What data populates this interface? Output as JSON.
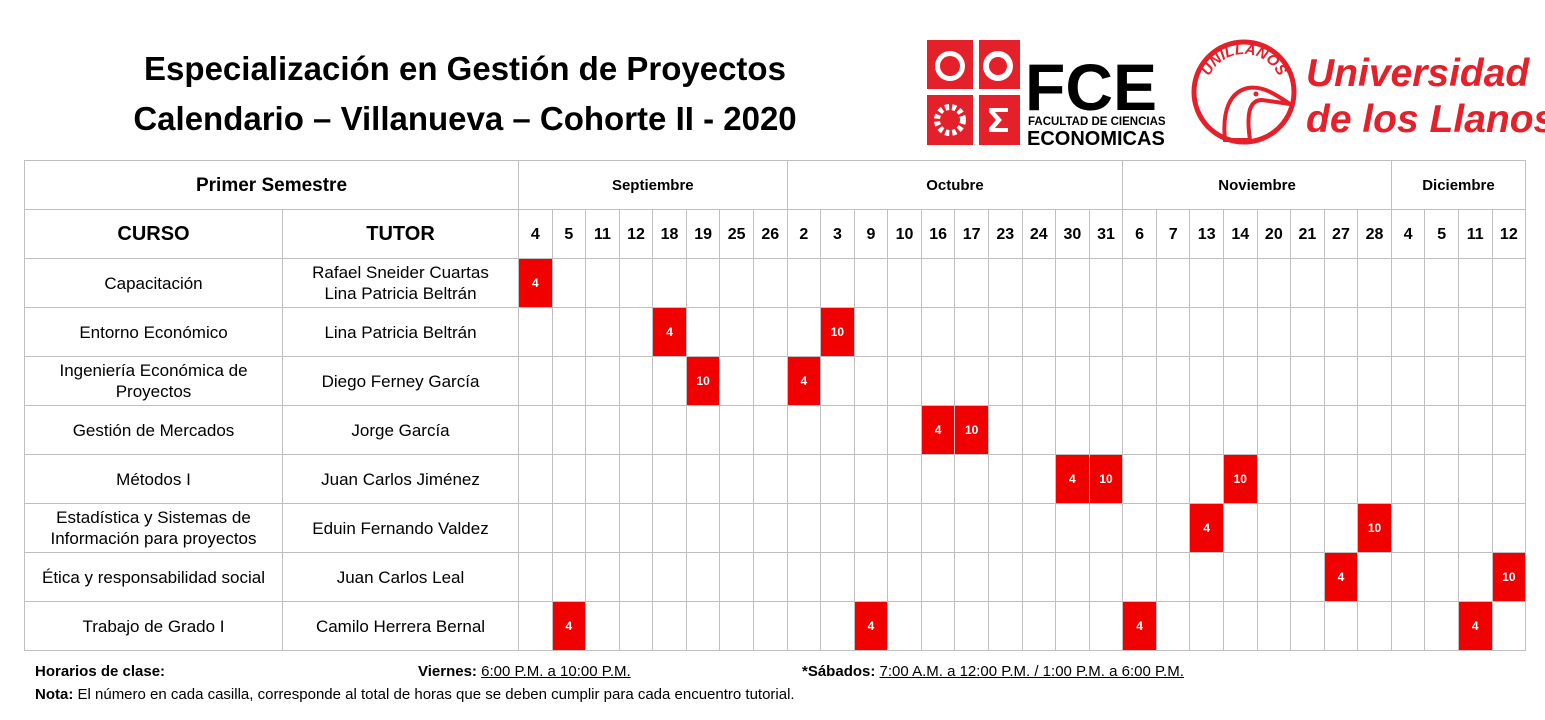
{
  "header": {
    "title_lines": [
      "Especialización en Gestión de Proyectos",
      "Calendario – Villanueva – Cohorte II - 2020"
    ]
  },
  "logos": {
    "fce": {
      "acronym": "FCE",
      "line1": "FACULTAD DE CIENCIAS",
      "line2": "ECONOMICAS"
    },
    "unillanos": {
      "badge": "UNILLANOS",
      "line1": "Universidad",
      "line2": "de los Llanos"
    }
  },
  "table": {
    "semester": "Primer Semestre",
    "course_header": "CURSO",
    "tutor_header": "TUTOR",
    "months": [
      {
        "name": "Septiembre",
        "days": [
          4,
          5,
          11,
          12,
          18,
          19,
          25,
          26
        ]
      },
      {
        "name": "Octubre",
        "days": [
          2,
          3,
          9,
          10,
          16,
          17,
          23,
          24,
          30,
          31
        ]
      },
      {
        "name": "Noviembre",
        "days": [
          6,
          7,
          13,
          14,
          20,
          21,
          27,
          28
        ]
      },
      {
        "name": "Diciembre",
        "days": [
          4,
          5,
          11,
          12
        ]
      }
    ],
    "rows": [
      {
        "course": "Capacitación",
        "tutor": [
          "Rafael Sneider Cuartas",
          "Lina Patricia Beltrán"
        ],
        "cells": [
          4,
          null,
          null,
          null,
          null,
          null,
          null,
          null,
          null,
          null,
          null,
          null,
          null,
          null,
          null,
          null,
          null,
          null,
          null,
          null,
          null,
          null,
          null,
          null,
          null,
          null,
          null,
          null,
          null,
          null
        ]
      },
      {
        "course": "Entorno Económico",
        "tutor": [
          "Lina Patricia Beltrán"
        ],
        "cells": [
          null,
          null,
          null,
          null,
          4,
          null,
          null,
          null,
          null,
          10,
          null,
          null,
          null,
          null,
          null,
          null,
          null,
          null,
          null,
          null,
          null,
          null,
          null,
          null,
          null,
          null,
          null,
          null,
          null,
          null
        ]
      },
      {
        "course": "Ingeniería Económica de Proyectos",
        "tutor": [
          "Diego Ferney García"
        ],
        "cells": [
          null,
          null,
          null,
          null,
          null,
          10,
          null,
          null,
          4,
          null,
          null,
          null,
          null,
          null,
          null,
          null,
          null,
          null,
          null,
          null,
          null,
          null,
          null,
          null,
          null,
          null,
          null,
          null,
          null,
          null
        ]
      },
      {
        "course": "Gestión de Mercados",
        "tutor": [
          "Jorge García"
        ],
        "cells": [
          null,
          null,
          null,
          null,
          null,
          null,
          null,
          null,
          null,
          null,
          null,
          null,
          4,
          10,
          null,
          null,
          null,
          null,
          null,
          null,
          null,
          null,
          null,
          null,
          null,
          null,
          null,
          null,
          null,
          null
        ]
      },
      {
        "course": "Métodos I",
        "tutor": [
          "Juan Carlos Jiménez"
        ],
        "cells": [
          null,
          null,
          null,
          null,
          null,
          null,
          null,
          null,
          null,
          null,
          null,
          null,
          null,
          null,
          null,
          null,
          4,
          10,
          null,
          null,
          null,
          10,
          null,
          null,
          null,
          null,
          null,
          null,
          null,
          null
        ]
      },
      {
        "course": "Estadística y Sistemas de Información para proyectos",
        "tutor": [
          "Eduin Fernando Valdez"
        ],
        "cells": [
          null,
          null,
          null,
          null,
          null,
          null,
          null,
          null,
          null,
          null,
          null,
          null,
          null,
          null,
          null,
          null,
          null,
          null,
          null,
          null,
          4,
          null,
          null,
          null,
          null,
          10,
          null,
          null,
          null,
          null
        ]
      },
      {
        "course": "Ética y responsabilidad social",
        "tutor": [
          "Juan Carlos Leal"
        ],
        "cells": [
          null,
          null,
          null,
          null,
          null,
          null,
          null,
          null,
          null,
          null,
          null,
          null,
          null,
          null,
          null,
          null,
          null,
          null,
          null,
          null,
          null,
          null,
          null,
          null,
          4,
          null,
          null,
          null,
          null,
          10
        ]
      },
      {
        "course": "Trabajo de Grado I",
        "tutor": [
          "Camilo Herrera Bernal"
        ],
        "cells": [
          null,
          4,
          null,
          null,
          null,
          null,
          null,
          null,
          null,
          null,
          4,
          null,
          null,
          null,
          null,
          null,
          null,
          null,
          4,
          null,
          null,
          null,
          null,
          null,
          null,
          null,
          null,
          null,
          4,
          null
        ]
      }
    ]
  },
  "footer": {
    "schedule_label": "Horarios de clase:",
    "friday_label": "Viernes:",
    "friday_time": "6:00 P.M. a 10:00 P.M.",
    "saturday_label": "*Sábados:",
    "saturday_time": "7:00 A.M. a 12:00 P.M. / 1:00 P.M. a 6:00 P.M.",
    "note_label": "Nota:",
    "note_text": "El número en cada casilla, corresponde al total de horas que se deben cumplir para cada encuentro tutorial."
  }
}
